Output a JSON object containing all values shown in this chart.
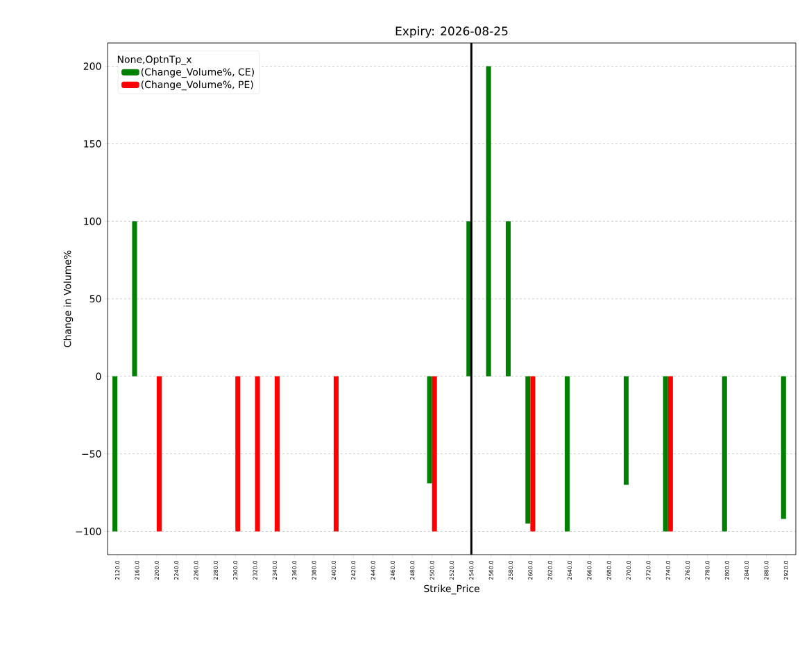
{
  "chart_data": {
    "type": "bar",
    "title": "Expiry: 2026-08-25",
    "xlabel": "Strike_Price",
    "ylabel": "Change in Volume%",
    "legend_title": "None,OptnTp_x",
    "categories": [
      "2120.0",
      "2160.0",
      "2200.0",
      "2240.0",
      "2260.0",
      "2280.0",
      "2300.0",
      "2320.0",
      "2340.0",
      "2360.0",
      "2380.0",
      "2400.0",
      "2420.0",
      "2440.0",
      "2460.0",
      "2480.0",
      "2500.0",
      "2520.0",
      "2540.0",
      "2560.0",
      "2580.0",
      "2600.0",
      "2620.0",
      "2640.0",
      "2660.0",
      "2680.0",
      "2700.0",
      "2720.0",
      "2740.0",
      "2760.0",
      "2780.0",
      "2800.0",
      "2840.0",
      "2880.0",
      "2920.0"
    ],
    "series": [
      {
        "name": "(Change_Volume%, CE)",
        "color": "#008000",
        "values": [
          -100,
          100,
          null,
          null,
          null,
          null,
          null,
          null,
          null,
          null,
          null,
          null,
          null,
          null,
          null,
          null,
          -69,
          null,
          100,
          200,
          100,
          -95,
          null,
          -100,
          null,
          null,
          -70,
          null,
          -100,
          null,
          null,
          -100,
          null,
          null,
          -92
        ]
      },
      {
        "name": "(Change_Volume%, PE)",
        "color": "#ff0000",
        "values": [
          null,
          null,
          -100,
          null,
          null,
          null,
          -100,
          -100,
          -100,
          null,
          null,
          -100,
          null,
          null,
          null,
          null,
          -100,
          null,
          null,
          null,
          null,
          -100,
          null,
          null,
          null,
          null,
          null,
          null,
          -100,
          null,
          null,
          null,
          null,
          null,
          null
        ]
      }
    ],
    "ylim": [
      -115,
      215
    ],
    "yticks": [
      {
        "value": -100,
        "label": "−100"
      },
      {
        "value": -50,
        "label": "−50"
      },
      0,
      50,
      100,
      150,
      200
    ],
    "grid": "y",
    "legend": "top left",
    "ref_lines": [
      {
        "axis": "x",
        "value": "2540.0",
        "color": "#000000"
      }
    ]
  }
}
